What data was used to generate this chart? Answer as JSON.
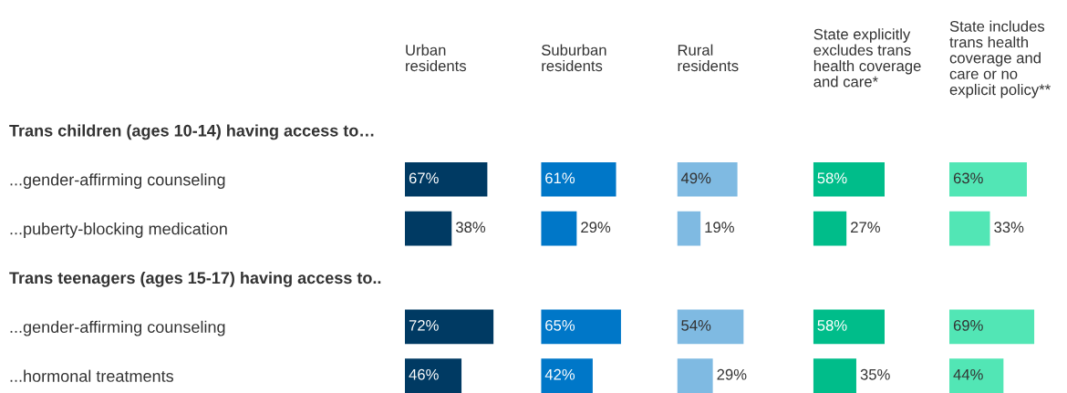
{
  "chart_data": [
    {
      "type": "bar",
      "orientation": "horizontal",
      "title": "Urban\nresidents",
      "tick_labels": "y",
      "color": "#003a63",
      "categories": [
        "Trans children (ages 10-14) having access to…",
        "...gender-affirming counseling",
        "...puberty-blocking medication",
        "Trans teenagers (ages 15-17) having access to..",
        "...gender-affirming counseling",
        "...hormonal treatments"
      ],
      "values": [
        null,
        67,
        38,
        null,
        72,
        46
      ],
      "value_labels": [
        null,
        "67%",
        "38%",
        null,
        "72%",
        "46%"
      ]
    },
    {
      "type": "bar",
      "orientation": "horizontal",
      "title": "Suburban\nresidents",
      "tick_labels": false,
      "color": "#0077c8",
      "categories": [
        null,
        null,
        null,
        null,
        null,
        null
      ],
      "values": [
        null,
        61,
        29,
        null,
        65,
        42
      ],
      "value_labels": [
        null,
        "61%",
        "29%",
        null,
        "65%",
        "42%"
      ]
    },
    {
      "type": "bar",
      "orientation": "horizontal",
      "title": "Rural\nresidents",
      "tick_labels": false,
      "color": "#7fbae2",
      "categories": [
        null,
        null,
        null,
        null,
        null,
        null
      ],
      "values": [
        null,
        49,
        19,
        null,
        54,
        29
      ],
      "value_labels": [
        null,
        "49%",
        "19%",
        null,
        "54%",
        "29%"
      ]
    },
    {
      "type": "bar",
      "orientation": "horizontal",
      "title": "State explicitly\nexcludes trans\nhealth coverage\nand care*",
      "tick_labels": false,
      "color": "#00bd8a",
      "categories": [
        null,
        null,
        null,
        null,
        null,
        null
      ],
      "values": [
        null,
        58,
        27,
        null,
        58,
        35
      ],
      "value_labels": [
        null,
        "58%",
        "27%",
        null,
        "58%",
        "35%"
      ]
    },
    {
      "type": "bar",
      "orientation": "horizontal",
      "title": "State includes\ntrans health\ncoverage and\ncare or no\nexplicit policy**",
      "tick_labels": false,
      "color": "#52e6b5",
      "categories": [
        null,
        null,
        null,
        null,
        null,
        null
      ],
      "values": [
        null,
        63,
        33,
        null,
        69,
        44
      ],
      "value_labels": [
        null,
        "63%",
        "33%",
        null,
        "69%",
        "44%"
      ]
    }
  ]
}
